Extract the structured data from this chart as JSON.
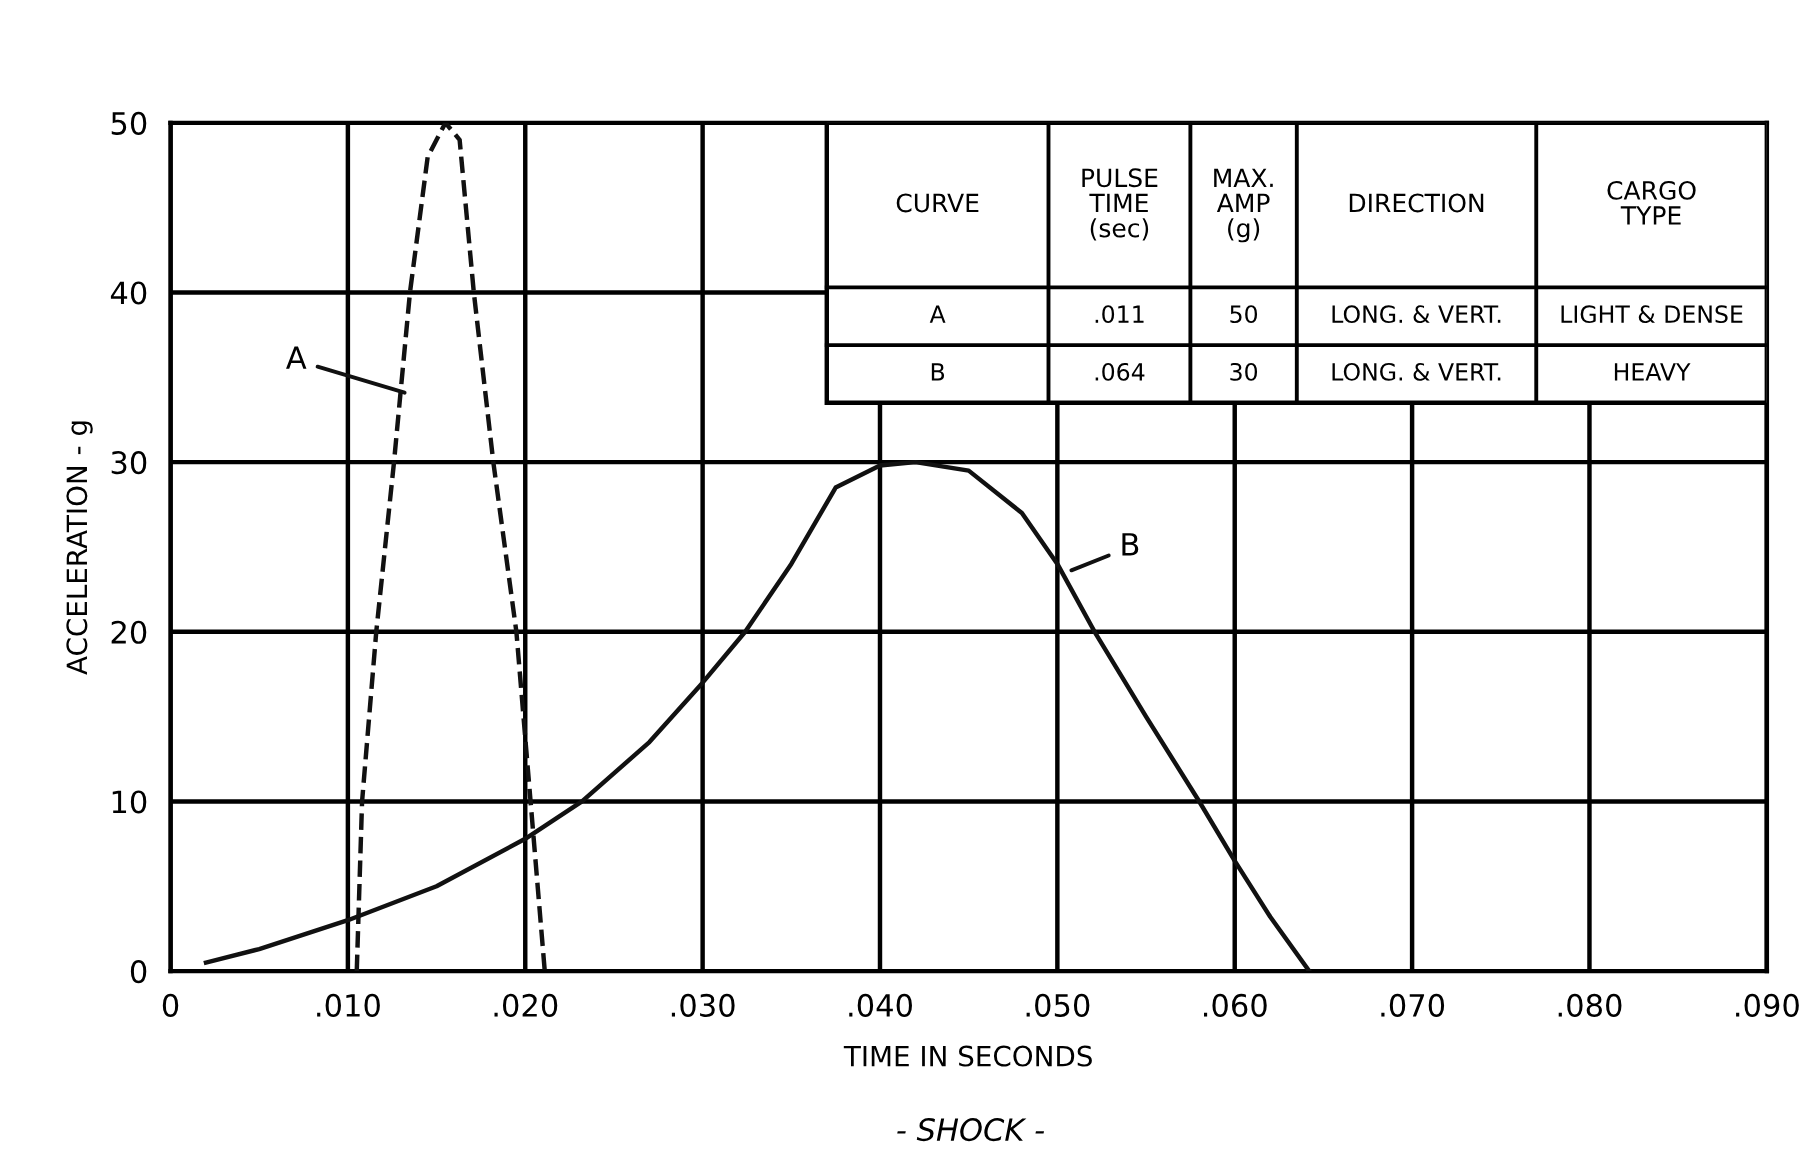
{
  "chart_data": {
    "type": "line",
    "title": "- SHOCK -",
    "xlabel": "TIME IN SECONDS",
    "ylabel": "ACCELERATION - g",
    "series": [
      {
        "name": "A",
        "color": "#111111",
        "line_style": "dashed",
        "x": [
          0.0105,
          0.0108,
          0.0116,
          0.0126,
          0.0135,
          0.0145,
          0.0155,
          0.0163,
          0.0171,
          0.0182,
          0.0195,
          0.0203,
          0.0211
        ],
        "values": [
          0,
          10,
          20,
          30,
          40,
          48,
          50,
          49,
          40,
          30,
          20,
          10,
          0
        ]
      },
      {
        "name": "B",
        "color": "#111111",
        "line_style": "solid",
        "x": [
          0.002,
          0.005,
          0.01,
          0.015,
          0.02,
          0.0232,
          0.027,
          0.03,
          0.0324,
          0.035,
          0.0375,
          0.04,
          0.042,
          0.045,
          0.048,
          0.05,
          0.0521,
          0.055,
          0.058,
          0.06,
          0.062,
          0.0642
        ],
        "values": [
          0.5,
          1.3,
          3,
          5,
          7.8,
          10,
          13.5,
          17,
          20,
          24,
          28.5,
          29.8,
          30,
          29.5,
          27,
          24,
          20,
          15,
          10,
          6.5,
          3.2,
          0
        ]
      }
    ],
    "annotations": [
      "CURVE",
      "PULSE\nTIME\n(sec)",
      "MAX.\nAMP\n(g)",
      "DIRECTION",
      "CARGO\nTYPE",
      "A",
      ".011",
      "50",
      "LONG. & VERT.",
      "LIGHT & DENSE",
      "B",
      ".064",
      "30",
      "LONG. & VERT.",
      "HEAVY"
    ],
    "xlim": [
      0,
      0.09
    ],
    "ylim": [
      0,
      50
    ],
    "xticks": [
      0,
      {
        "value": 0.01,
        "label": ".010"
      },
      {
        "value": 0.02,
        "label": ".020"
      },
      {
        "value": 0.03,
        "label": ".030"
      },
      {
        "value": 0.04,
        "label": ".040"
      },
      {
        "value": 0.05,
        "label": ".050"
      },
      {
        "value": 0.06,
        "label": ".060"
      },
      {
        "value": 0.07,
        "label": ".070"
      },
      {
        "value": 0.08,
        "label": ".080"
      },
      {
        "value": 0.09,
        "label": ".090"
      }
    ],
    "yticks": [
      0,
      10,
      20,
      30,
      40,
      50
    ],
    "grid": true
  }
}
